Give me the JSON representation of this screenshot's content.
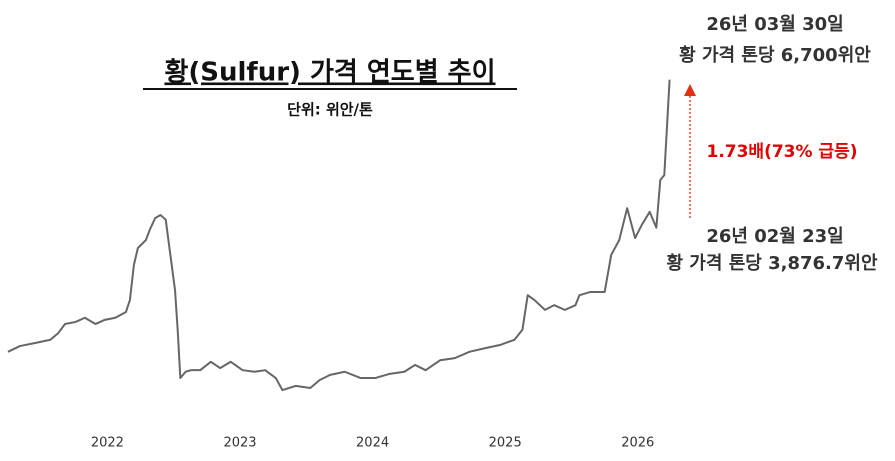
{
  "chart_data": {
    "type": "line",
    "title": "황(Sulfur) 가격 연도별 추이",
    "subtitle": "단위: 위안/톤",
    "annotations": [
      "26년 03월 30일",
      "황 가격 톤당 6,700위안",
      "1.73배(73% 급등)",
      "26년 02월 23일",
      "황 가격 톤당 3,876.7위안"
    ],
    "x": [
      2021.25,
      2021.34,
      2021.46,
      2021.57,
      2021.63,
      2021.68,
      2021.76,
      2021.83,
      2021.91,
      2021.98,
      2022.06,
      2022.14,
      2022.17,
      2022.2,
      2022.23,
      2022.29,
      2022.32,
      2022.36,
      2022.4,
      2022.44,
      2022.47,
      2022.51,
      2022.53,
      2022.55,
      2022.59,
      2022.63,
      2022.7,
      2022.78,
      2022.85,
      2022.93,
      2023.02,
      2023.11,
      2023.19,
      2023.27,
      2023.32,
      2023.42,
      2023.53,
      2023.6,
      2023.68,
      2023.79,
      2023.91,
      2024.02,
      2024.13,
      2024.24,
      2024.32,
      2024.4,
      2024.51,
      2024.62,
      2024.73,
      2024.85,
      2024.96,
      2025.07,
      2025.13,
      2025.17,
      2025.22,
      2025.3,
      2025.37,
      2025.45,
      2025.53,
      2025.56,
      2025.64,
      2025.75,
      2025.8,
      2025.86,
      2025.92,
      2025.98,
      2026.03,
      2026.09,
      2026.14,
      2026.17,
      2026.2,
      2026.24
    ],
    "values": [
      1510,
      1620,
      1680,
      1740,
      1870,
      2040,
      2080,
      2160,
      2040,
      2120,
      2160,
      2270,
      2500,
      3170,
      3490,
      3640,
      3840,
      4060,
      4120,
      4030,
      3450,
      2690,
      1930,
      1010,
      1130,
      1160,
      1160,
      1320,
      1200,
      1320,
      1160,
      1130,
      1160,
      1010,
      780,
      860,
      820,
      970,
      1070,
      1130,
      1010,
      1010,
      1090,
      1130,
      1260,
      1160,
      1350,
      1390,
      1510,
      1580,
      1640,
      1740,
      1930,
      2590,
      2500,
      2310,
      2400,
      2310,
      2400,
      2590,
      2650,
      2650,
      3360,
      3640,
      4250,
      3680,
      3930,
      4180,
      3876.7,
      4790,
      4880,
      6700
    ],
    "color": "#666666",
    "xlim": [
      2021.19,
      2027.94
    ],
    "xticks": [
      2022,
      2023,
      2024,
      2025,
      2026
    ],
    "ylim": [
      0,
      8220
    ]
  }
}
